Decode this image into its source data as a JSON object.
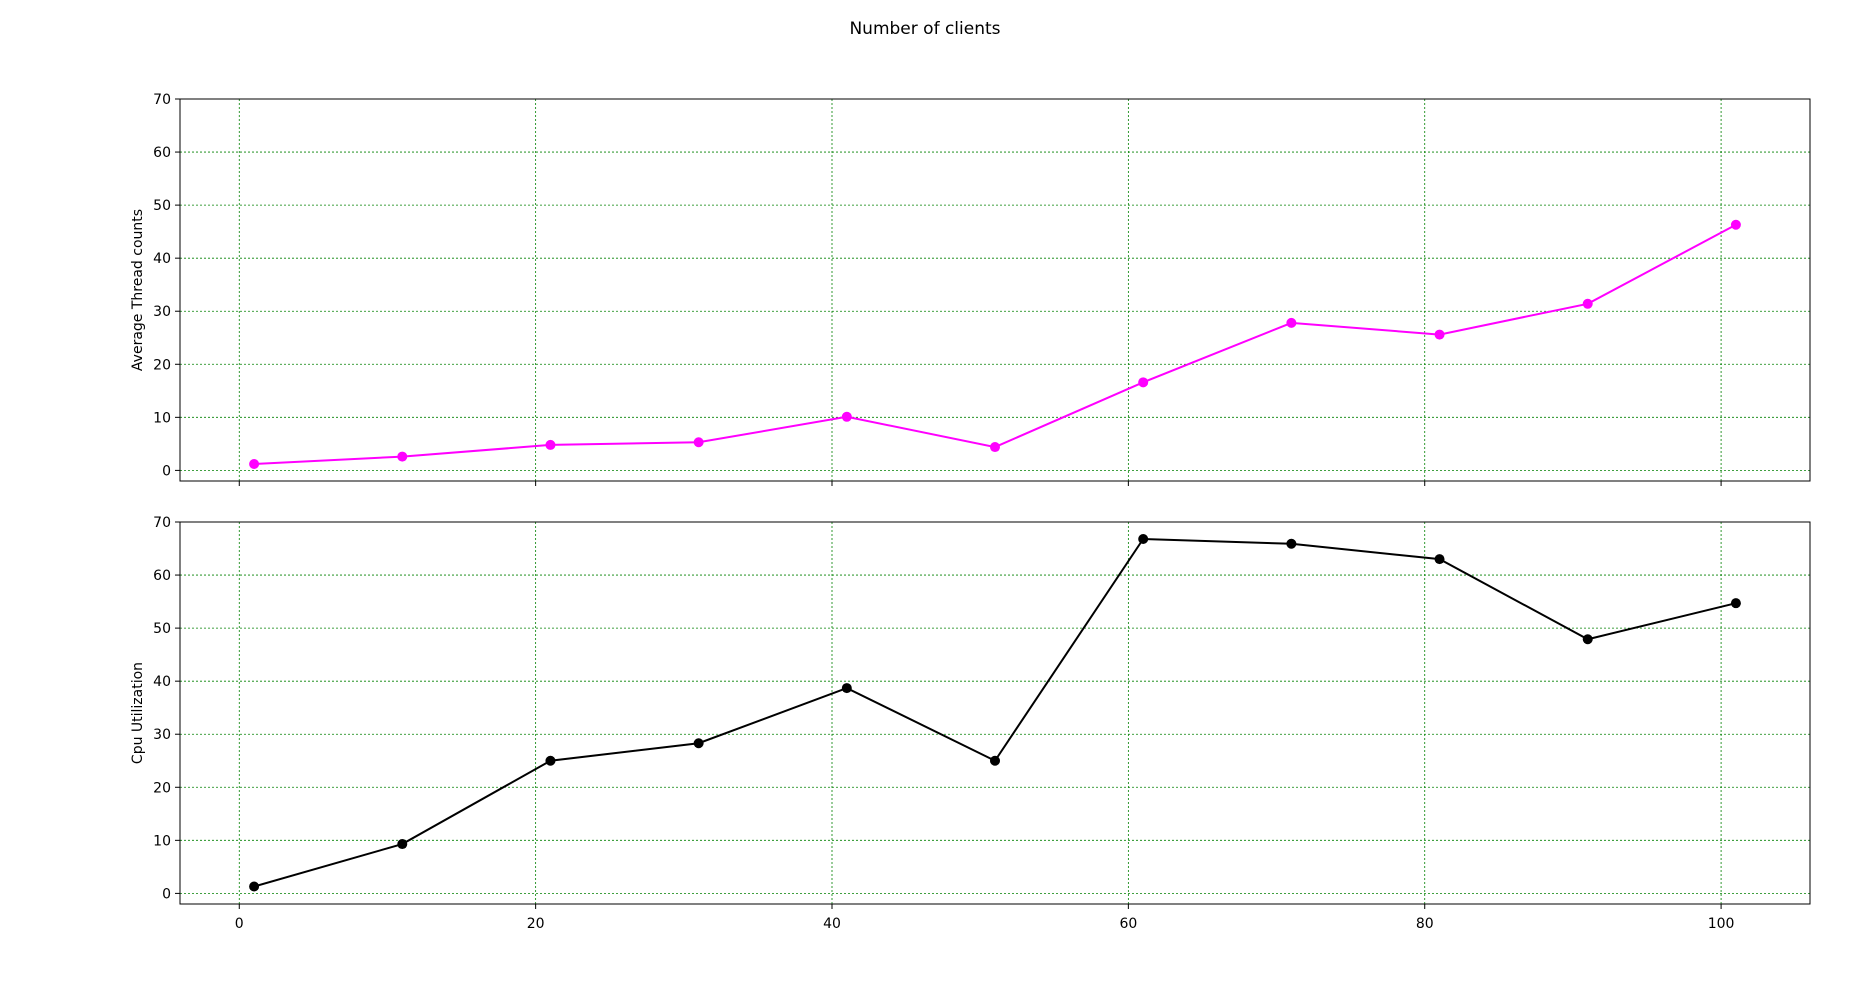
{
  "figure_title": "Number of clients",
  "chart_data": [
    {
      "type": "line",
      "title": "",
      "xlabel": "",
      "ylabel": "Average Thread counts",
      "x": [
        1,
        11,
        21,
        31,
        41,
        51,
        61,
        71,
        81,
        91,
        101
      ],
      "series": [
        {
          "values": [
            1.2,
            2.6,
            4.8,
            5.3,
            10.1,
            4.4,
            16.6,
            27.8,
            25.6,
            31.4,
            46.3
          ],
          "color": "#ff00ff",
          "marker": "circle"
        }
      ],
      "xlim": [
        -4,
        106
      ],
      "ylim": [
        -2,
        70
      ],
      "xticks": [
        0,
        20,
        40,
        60,
        80,
        100
      ],
      "yticks": [
        0,
        10,
        20,
        30,
        40,
        50,
        60,
        70
      ],
      "show_xtick_labels": false,
      "grid": true,
      "grid_color": "#008000",
      "grid_style": "dotted"
    },
    {
      "type": "line",
      "title": "",
      "xlabel": "",
      "ylabel": "Cpu Utilization",
      "x": [
        1,
        11,
        21,
        31,
        41,
        51,
        61,
        71,
        81,
        91,
        101
      ],
      "series": [
        {
          "values": [
            1.3,
            9.3,
            25.0,
            28.3,
            38.7,
            25.0,
            66.8,
            65.9,
            63.0,
            47.9,
            54.7
          ],
          "color": "#000000",
          "marker": "circle"
        }
      ],
      "xlim": [
        -4,
        106
      ],
      "ylim": [
        -2,
        70
      ],
      "xticks": [
        0,
        20,
        40,
        60,
        80,
        100
      ],
      "yticks": [
        0,
        10,
        20,
        30,
        40,
        50,
        60,
        70
      ],
      "show_xtick_labels": true,
      "grid": true,
      "grid_color": "#008000",
      "grid_style": "dotted"
    }
  ]
}
